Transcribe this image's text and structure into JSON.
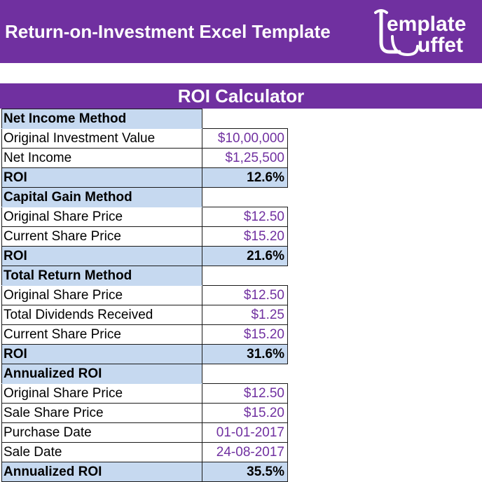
{
  "header": {
    "title": "Return-on-Investment Excel Template",
    "logo_text": "TemplateBuffet"
  },
  "calculator": {
    "title": "ROI Calculator",
    "sections": [
      {
        "name": "Net Income Method",
        "rows": [
          {
            "label": "Original Investment Value",
            "value": "$10,00,000"
          },
          {
            "label": "Net Income",
            "value": "$1,25,500"
          }
        ],
        "result": {
          "label": "ROI",
          "value": "12.6%"
        }
      },
      {
        "name": "Capital Gain Method",
        "rows": [
          {
            "label": "Original Share Price",
            "value": "$12.50"
          },
          {
            "label": "Current Share Price",
            "value": "$15.20"
          }
        ],
        "result": {
          "label": "ROI",
          "value": "21.6%"
        }
      },
      {
        "name": "Total Return Method",
        "rows": [
          {
            "label": "Original Share Price",
            "value": "$12.50"
          },
          {
            "label": "Total Dividends Received",
            "value": "$1.25"
          },
          {
            "label": "Current Share Price",
            "value": "$15.20"
          }
        ],
        "result": {
          "label": "ROI",
          "value": "31.6%"
        }
      },
      {
        "name": "Annualized ROI",
        "rows": [
          {
            "label": "Original Share Price",
            "value": "$12.50"
          },
          {
            "label": "Sale Share Price",
            "value": "$15.20"
          },
          {
            "label": "Purchase Date",
            "value": "01-01-2017"
          },
          {
            "label": "Sale Date",
            "value": "24-08-2017"
          }
        ],
        "result": {
          "label": "Annualized ROI",
          "value": "35.5%"
        }
      }
    ]
  },
  "colors": {
    "brand_purple": "#7030a0",
    "section_fill": "#c6d9f0",
    "value_text": "#7030a0"
  }
}
